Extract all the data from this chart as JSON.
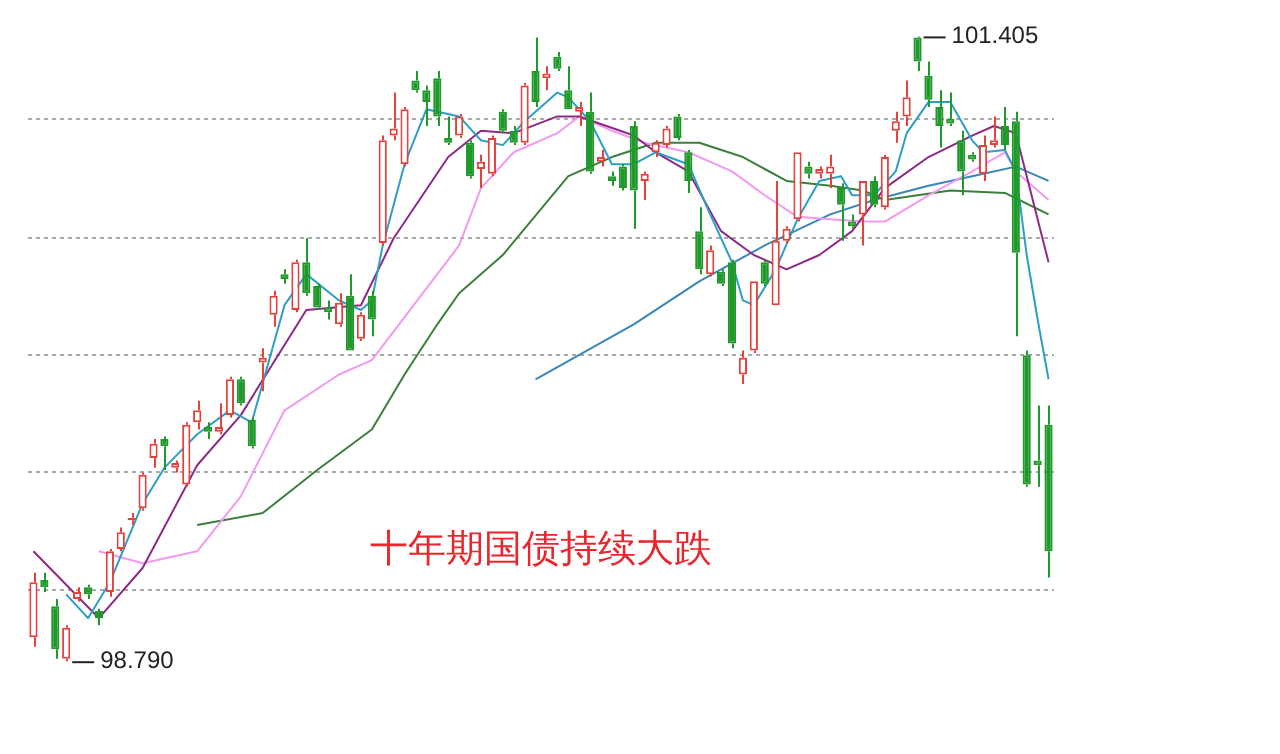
{
  "chart_data": {
    "type": "candlestick",
    "title": "十年期国债持续大跌",
    "categories": [
      null,
      null,
      null,
      null,
      null,
      null,
      null,
      null,
      null,
      null,
      null,
      null,
      null,
      null,
      null,
      null,
      null,
      null,
      null,
      null,
      null,
      null,
      null,
      null,
      null,
      null,
      null,
      null,
      null,
      null,
      null,
      null,
      null,
      null,
      null,
      null,
      null,
      null,
      null,
      null,
      null,
      null,
      null,
      null,
      null,
      null,
      null,
      null,
      null,
      null,
      null,
      null,
      null,
      null,
      null,
      null,
      null,
      null,
      null,
      null,
      null,
      null,
      null,
      null,
      null,
      null,
      null,
      null,
      null,
      null,
      null,
      null,
      null,
      null,
      null,
      null,
      null,
      null,
      null,
      null,
      null,
      null,
      null,
      null,
      null,
      null,
      null,
      null,
      null,
      null,
      null,
      null,
      null,
      null
    ],
    "ohlc": [
      [
        98.89,
        99.16,
        98.85,
        99.12
      ],
      [
        99.13,
        99.16,
        99.08,
        99.1
      ],
      [
        99.02,
        99.05,
        98.8,
        98.84
      ],
      [
        98.8,
        98.94,
        98.79,
        98.93
      ],
      [
        99.05,
        99.1,
        99.04,
        99.08
      ],
      [
        99.1,
        99.11,
        99.05,
        99.07
      ],
      [
        99.0,
        99.01,
        98.94,
        98.97
      ],
      [
        99.08,
        99.26,
        99.06,
        99.25
      ],
      [
        99.26,
        99.35,
        99.25,
        99.33
      ],
      [
        99.38,
        99.41,
        99.36,
        99.39
      ],
      [
        99.43,
        99.58,
        99.42,
        99.57
      ],
      [
        99.64,
        99.72,
        99.6,
        99.7
      ],
      [
        99.72,
        99.73,
        99.59,
        99.69
      ],
      [
        99.6,
        99.63,
        99.58,
        99.62
      ],
      [
        99.53,
        99.79,
        99.52,
        99.78
      ],
      [
        99.79,
        99.88,
        99.76,
        99.84
      ],
      [
        99.77,
        99.79,
        99.72,
        99.75
      ],
      [
        99.75,
        99.87,
        99.74,
        99.77
      ],
      [
        99.82,
        99.98,
        99.81,
        99.97
      ],
      [
        99.97,
        99.98,
        99.86,
        99.87
      ],
      [
        99.8,
        99.81,
        99.68,
        99.69
      ],
      [
        100.04,
        100.1,
        99.92,
        100.06
      ],
      [
        100.24,
        100.34,
        100.19,
        100.32
      ],
      [
        100.41,
        100.43,
        100.37,
        100.39
      ],
      [
        100.26,
        100.47,
        100.25,
        100.46
      ],
      [
        100.46,
        100.56,
        100.32,
        100.33
      ],
      [
        100.36,
        100.37,
        100.26,
        100.27
      ],
      [
        100.27,
        100.3,
        100.22,
        100.25
      ],
      [
        100.2,
        100.33,
        100.19,
        100.29
      ],
      [
        100.32,
        100.41,
        100.09,
        100.09
      ],
      [
        100.14,
        100.25,
        100.13,
        100.24
      ],
      [
        100.32,
        100.34,
        100.15,
        100.22
      ],
      [
        100.54,
        100.99,
        100.53,
        100.97
      ],
      [
        100.99,
        101.17,
        100.97,
        101.02
      ],
      [
        100.87,
        101.11,
        100.86,
        101.1
      ],
      [
        101.22,
        101.26,
        101.17,
        101.18
      ],
      [
        101.18,
        101.2,
        101.03,
        101.13
      ],
      [
        101.23,
        101.26,
        101.03,
        101.07
      ],
      [
        100.98,
        101.07,
        100.95,
        100.96
      ],
      [
        100.99,
        101.08,
        100.98,
        101.07
      ],
      [
        100.96,
        100.97,
        100.81,
        100.82
      ],
      [
        100.85,
        100.91,
        100.77,
        100.88
      ],
      [
        100.83,
        100.99,
        100.82,
        100.98
      ],
      [
        101.09,
        101.1,
        101.0,
        101.01
      ],
      [
        101.01,
        101.03,
        100.95,
        100.96
      ],
      [
        100.96,
        101.21,
        100.95,
        101.2
      ],
      [
        101.26,
        101.4,
        101.11,
        101.13
      ],
      [
        101.23,
        101.28,
        101.18,
        101.25
      ],
      [
        101.32,
        101.34,
        101.26,
        101.27
      ],
      [
        101.18,
        101.28,
        101.1,
        101.1
      ],
      [
        101.09,
        101.13,
        101.03,
        101.11
      ],
      [
        101.09,
        101.17,
        100.83,
        100.84
      ],
      [
        100.88,
        100.93,
        100.86,
        100.9
      ],
      [
        100.82,
        100.84,
        100.78,
        100.8
      ],
      [
        100.86,
        100.87,
        100.76,
        100.77
      ],
      [
        101.03,
        101.05,
        100.6,
        100.76
      ],
      [
        100.8,
        100.84,
        100.72,
        100.83
      ],
      [
        100.92,
        100.97,
        100.9,
        100.96
      ],
      [
        100.95,
        101.03,
        100.94,
        101.02
      ],
      [
        101.07,
        101.08,
        100.97,
        100.98
      ],
      [
        100.92,
        100.93,
        100.75,
        100.8
      ],
      [
        100.59,
        100.69,
        100.41,
        100.43
      ],
      [
        100.41,
        100.53,
        100.4,
        100.51
      ],
      [
        100.42,
        100.43,
        100.36,
        100.37
      ],
      [
        100.46,
        100.47,
        100.1,
        100.12
      ],
      [
        99.99,
        100.09,
        99.95,
        100.06
      ],
      [
        100.09,
        100.38,
        100.08,
        100.38
      ],
      [
        100.46,
        100.47,
        100.36,
        100.37
      ],
      [
        100.28,
        100.8,
        100.28,
        100.55
      ],
      [
        100.55,
        100.61,
        100.54,
        100.6
      ],
      [
        100.64,
        100.92,
        100.63,
        100.92
      ],
      [
        100.86,
        100.88,
        100.81,
        100.83
      ],
      [
        100.83,
        100.86,
        100.81,
        100.85
      ],
      [
        100.83,
        100.91,
        100.77,
        100.86
      ],
      [
        100.77,
        100.79,
        100.55,
        100.7
      ],
      [
        100.63,
        100.66,
        100.6,
        100.61
      ],
      [
        100.66,
        100.8,
        100.53,
        100.8
      ],
      [
        100.8,
        100.82,
        100.69,
        100.7
      ],
      [
        100.69,
        100.91,
        100.68,
        100.9
      ],
      [
        101.01,
        101.09,
        100.96,
        101.05
      ],
      [
        101.07,
        101.22,
        101.03,
        101.15
      ],
      [
        101.4,
        101.405,
        101.26,
        101.3
      ],
      [
        101.24,
        101.3,
        101.11,
        101.14
      ],
      [
        101.11,
        101.18,
        100.94,
        101.03
      ],
      [
        101.06,
        101.17,
        101.03,
        101.04
      ],
      [
        100.97,
        101.01,
        100.74,
        100.84
      ],
      [
        100.91,
        100.92,
        100.88,
        100.89
      ],
      [
        100.83,
        100.99,
        100.8,
        100.95
      ],
      [
        100.95,
        101.07,
        100.94,
        100.97
      ],
      [
        101.03,
        101.11,
        100.93,
        100.95
      ],
      [
        101.05,
        101.09,
        100.15,
        100.5
      ],
      [
        100.07,
        100.09,
        99.52,
        99.53
      ],
      [
        99.63,
        99.86,
        99.52,
        99.61
      ],
      [
        99.78,
        99.86,
        99.14,
        99.25
      ]
    ],
    "series": [
      {
        "type": "line",
        "color": "#2f9ec4",
        "values": [
          null,
          null,
          null,
          99.07,
          null,
          98.97,
          null,
          99.12,
          null,
          null,
          99.45,
          null,
          99.6,
          null,
          null,
          99.74,
          null,
          null,
          99.84,
          null,
          99.79,
          null,
          null,
          100.28,
          null,
          100.41,
          null,
          null,
          100.3,
          null,
          100.26,
          100.3,
          100.53,
          null,
          100.87,
          null,
          101.1,
          null,
          null,
          101.07,
          null,
          100.97,
          null,
          100.95,
          null,
          101.05,
          null,
          null,
          101.17,
          101.15,
          null,
          101.05,
          null,
          100.87,
          null,
          100.87,
          null,
          100.92,
          null,
          null,
          100.87,
          null,
          100.66,
          null,
          100.46,
          100.3,
          100.28,
          null,
          100.43,
          null,
          100.64,
          null,
          100.8,
          null,
          100.82,
          100.74,
          null,
          100.74,
          null,
          100.84,
          101.0,
          null,
          101.13,
          null,
          101.13,
          null,
          100.97,
          100.92,
          null,
          100.93,
          100.84,
          100.49,
          100.22,
          99.97
        ]
      },
      {
        "type": "line",
        "color": "#8e2a86",
        "values": [
          99.25,
          null,
          null,
          null,
          null,
          null,
          98.97,
          null,
          null,
          null,
          99.18,
          null,
          null,
          null,
          null,
          99.61,
          null,
          null,
          null,
          99.82,
          null,
          null,
          null,
          null,
          null,
          100.26,
          null,
          null,
          null,
          null,
          100.28,
          null,
          null,
          100.56,
          null,
          null,
          null,
          null,
          100.9,
          null,
          null,
          101.01,
          null,
          null,
          101.0,
          null,
          null,
          null,
          101.07,
          null,
          101.07,
          null,
          null,
          null,
          null,
          100.99,
          null,
          100.92,
          null,
          null,
          100.84,
          null,
          null,
          100.59,
          null,
          null,
          100.49,
          null,
          null,
          100.43,
          null,
          null,
          100.49,
          null,
          null,
          100.59,
          null,
          null,
          100.77,
          null,
          null,
          null,
          100.9,
          null,
          null,
          null,
          100.99,
          null,
          101.03,
          null,
          101.0,
          100.82,
          null,
          100.46
        ]
      },
      {
        "type": "line",
        "color": "#f29af0",
        "values": [
          null,
          null,
          null,
          null,
          null,
          null,
          99.25,
          null,
          null,
          null,
          99.2,
          null,
          null,
          null,
          null,
          99.25,
          null,
          null,
          null,
          99.48,
          null,
          null,
          null,
          99.84,
          null,
          null,
          null,
          null,
          99.99,
          null,
          null,
          100.05,
          null,
          null,
          100.23,
          null,
          null,
          null,
          null,
          100.53,
          null,
          100.77,
          null,
          null,
          100.92,
          null,
          null,
          null,
          101.0,
          null,
          101.07,
          null,
          null,
          101.01,
          null,
          null,
          100.96,
          null,
          null,
          null,
          100.92,
          null,
          null,
          null,
          100.84,
          null,
          null,
          100.74,
          null,
          null,
          100.65,
          null,
          null,
          100.64,
          null,
          null,
          100.63,
          null,
          100.63,
          null,
          null,
          null,
          100.74,
          null,
          null,
          null,
          100.84,
          null,
          null,
          100.92,
          100.84,
          null,
          null,
          100.72
        ]
      },
      {
        "type": "line",
        "color": "#3c7f3c",
        "values": [
          null,
          null,
          null,
          null,
          null,
          null,
          null,
          null,
          null,
          null,
          null,
          null,
          null,
          null,
          null,
          99.36,
          null,
          null,
          null,
          null,
          null,
          99.41,
          null,
          null,
          null,
          null,
          99.59,
          null,
          null,
          null,
          null,
          99.76,
          null,
          null,
          99.99,
          null,
          null,
          100.2,
          null,
          100.33,
          null,
          null,
          null,
          100.49,
          null,
          null,
          null,
          null,
          null,
          100.82,
          null,
          null,
          null,
          100.9,
          null,
          null,
          null,
          100.96,
          null,
          null,
          null,
          100.96,
          null,
          null,
          null,
          100.9,
          null,
          null,
          null,
          100.8,
          null,
          null,
          null,
          100.78,
          null,
          null,
          100.76,
          null,
          100.72,
          null,
          null,
          null,
          null,
          null,
          100.76,
          null,
          null,
          null,
          null,
          100.75,
          null,
          null,
          null,
          100.66
        ]
      },
      {
        "type": "line",
        "color": "#3a86b8",
        "values": [
          null,
          null,
          null,
          null,
          null,
          null,
          null,
          null,
          null,
          null,
          null,
          null,
          null,
          null,
          null,
          null,
          null,
          null,
          null,
          null,
          null,
          null,
          null,
          null,
          null,
          null,
          null,
          null,
          null,
          null,
          null,
          null,
          null,
          null,
          null,
          null,
          null,
          null,
          null,
          null,
          null,
          null,
          null,
          null,
          null,
          null,
          99.97,
          null,
          null,
          null,
          null,
          null,
          null,
          null,
          null,
          100.2,
          null,
          null,
          null,
          null,
          null,
          100.38,
          null,
          null,
          null,
          null,
          null,
          100.53,
          null,
          null,
          null,
          null,
          null,
          100.66,
          null,
          null,
          null,
          100.72,
          null,
          null,
          null,
          null,
          100.78,
          null,
          null,
          null,
          100.82,
          null,
          null,
          null,
          100.86,
          null,
          null,
          100.8
        ]
      }
    ],
    "annotations": [
      "101.405",
      "98.790"
    ],
    "yticks": [
      {
        "value": 101.06,
        "label": null
      },
      {
        "value": 100.56,
        "label": null
      },
      {
        "value": 100.07,
        "label": null
      },
      {
        "value": 99.58,
        "label": null
      },
      {
        "value": 99.09,
        "label": null
      }
    ],
    "grid": "y"
  }
}
